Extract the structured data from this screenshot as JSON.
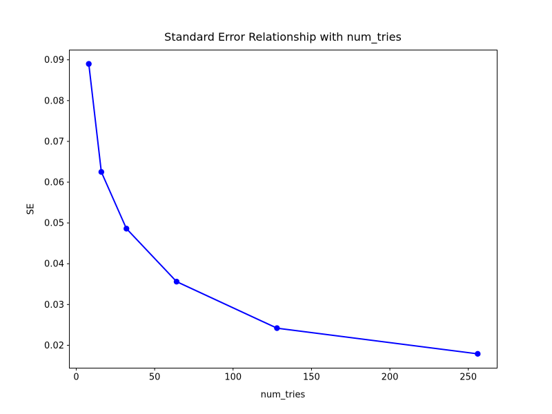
{
  "figure": {
    "background_color": "#ffffff",
    "spine_color": "#000000",
    "text_color": "#000000"
  },
  "chart_data": {
    "type": "line",
    "title": "Standard Error Relationship with num_tries",
    "xlabel": "num_tries",
    "ylabel": "SE",
    "x": [
      8,
      16,
      32,
      64,
      128,
      256
    ],
    "y": [
      0.089,
      0.0625,
      0.0486,
      0.0356,
      0.0242,
      0.0179
    ],
    "series_name": "SE vs num_tries",
    "line_color": "#0000ff",
    "marker": "o",
    "marker_color": "#0000ff",
    "grid": false,
    "legend": null,
    "xlim": [
      -4.4,
      268.4
    ],
    "ylim": [
      0.0144,
      0.0924
    ],
    "xticks": [
      0,
      50,
      100,
      150,
      200,
      250
    ],
    "xtick_labels": [
      "0",
      "50",
      "100",
      "150",
      "200",
      "250"
    ],
    "yticks": [
      0.02,
      0.03,
      0.04,
      0.05,
      0.06,
      0.07,
      0.08,
      0.09
    ],
    "ytick_labels": [
      "0.02",
      "0.03",
      "0.04",
      "0.05",
      "0.06",
      "0.07",
      "0.08",
      "0.09"
    ]
  }
}
